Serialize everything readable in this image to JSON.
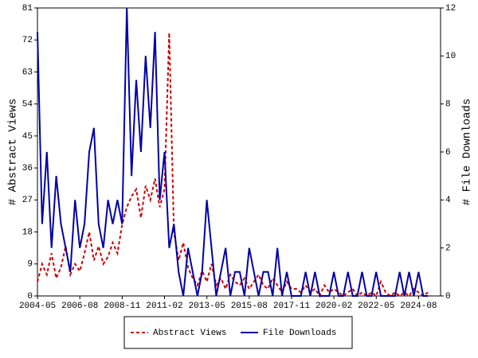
{
  "chart_data": {
    "type": "line",
    "x_label_left": "# Abstract Views",
    "y_label": "# Abstract Views",
    "y2_label": "# File Downloads",
    "x": [
      2004.33,
      2004.58,
      2004.83,
      2005.08,
      2005.33,
      2005.58,
      2005.83,
      2006.08,
      2006.33,
      2006.58,
      2006.83,
      2007.08,
      2007.33,
      2007.58,
      2007.83,
      2008.08,
      2008.33,
      2008.58,
      2008.83,
      2009.08,
      2009.33,
      2009.58,
      2009.83,
      2010.08,
      2010.33,
      2010.58,
      2010.83,
      2011.08,
      2011.33,
      2011.58,
      2011.83,
      2012.08,
      2012.33,
      2012.58,
      2012.83,
      2013.08,
      2013.33,
      2013.58,
      2013.83,
      2014.08,
      2014.33,
      2014.58,
      2014.83,
      2015.08,
      2015.33,
      2015.58,
      2015.83,
      2016.08,
      2016.33,
      2016.58,
      2016.83,
      2017.08,
      2017.33,
      2017.58,
      2017.83,
      2018.08,
      2018.33,
      2018.58,
      2018.83,
      2019.08,
      2019.33,
      2019.58,
      2019.83,
      2020.08,
      2020.33,
      2020.58,
      2020.83,
      2021.08,
      2021.33,
      2021.58,
      2021.83,
      2022.08,
      2022.33,
      2022.58,
      2022.83,
      2023.08,
      2023.33,
      2023.58,
      2023.83,
      2024.08,
      2024.33,
      2024.58,
      2024.83,
      2025.08
    ],
    "series": [
      {
        "name": "Abstract Views",
        "color": "#cc0000",
        "dashed": true,
        "axis": "y",
        "values": [
          4,
          9,
          6,
          12,
          5,
          8,
          14,
          6,
          9,
          7,
          12,
          18,
          10,
          14,
          9,
          11,
          15,
          12,
          20,
          25,
          28,
          30,
          22,
          31,
          27,
          33,
          25,
          30,
          74,
          18,
          10,
          15,
          8,
          5,
          3,
          7,
          4,
          9,
          3,
          5,
          2,
          6,
          4,
          3,
          5,
          2,
          4,
          6,
          3,
          2,
          5,
          3,
          1,
          4,
          2,
          2,
          1,
          3,
          1,
          2,
          0,
          3,
          1,
          2,
          1,
          0,
          1,
          2,
          0,
          1,
          0,
          1,
          0,
          4,
          1,
          0,
          1,
          0,
          1,
          0,
          2,
          1,
          0,
          1
        ]
      },
      {
        "name": "File Downloads",
        "color": "#0000aa",
        "dashed": false,
        "axis": "y2",
        "values": [
          11,
          3,
          6,
          2,
          5,
          3,
          2,
          1,
          4,
          2,
          3,
          6,
          7,
          3,
          2,
          4,
          3,
          4,
          3,
          12,
          5,
          9,
          6,
          10,
          7,
          11,
          4,
          6,
          2,
          3,
          1,
          0,
          2,
          1,
          0,
          1,
          4,
          2,
          0,
          1,
          2,
          0,
          1,
          1,
          0,
          2,
          1,
          0,
          1,
          1,
          0,
          2,
          0,
          1,
          0,
          0,
          0,
          1,
          0,
          1,
          0,
          0,
          0,
          1,
          0,
          0,
          1,
          0,
          0,
          1,
          0,
          0,
          1,
          0,
          0,
          0,
          0,
          1,
          0,
          1,
          0,
          1,
          0,
          0
        ]
      }
    ],
    "xlim": [
      2004.33,
      2025.75
    ],
    "xticks": [
      {
        "value": 2004.333,
        "label": "2004-05"
      },
      {
        "value": 2006.583,
        "label": "2006-08"
      },
      {
        "value": 2008.833,
        "label": "2008-11"
      },
      {
        "value": 2011.083,
        "label": "2011-02"
      },
      {
        "value": 2013.333,
        "label": "2013-05"
      },
      {
        "value": 2015.583,
        "label": "2015-08"
      },
      {
        "value": 2017.833,
        "label": "2017-11"
      },
      {
        "value": 2020.083,
        "label": "2020-02"
      },
      {
        "value": 2022.333,
        "label": "2022-05"
      },
      {
        "value": 2024.583,
        "label": "2024-08"
      }
    ],
    "ylim": [
      0,
      81
    ],
    "yticks": [
      0,
      9,
      18,
      27,
      36,
      45,
      54,
      63,
      72,
      81
    ],
    "y2lim": [
      0,
      12
    ],
    "y2ticks": [
      0,
      2,
      4,
      6,
      8,
      10,
      12
    ],
    "grid": false,
    "legend": "bottom"
  }
}
